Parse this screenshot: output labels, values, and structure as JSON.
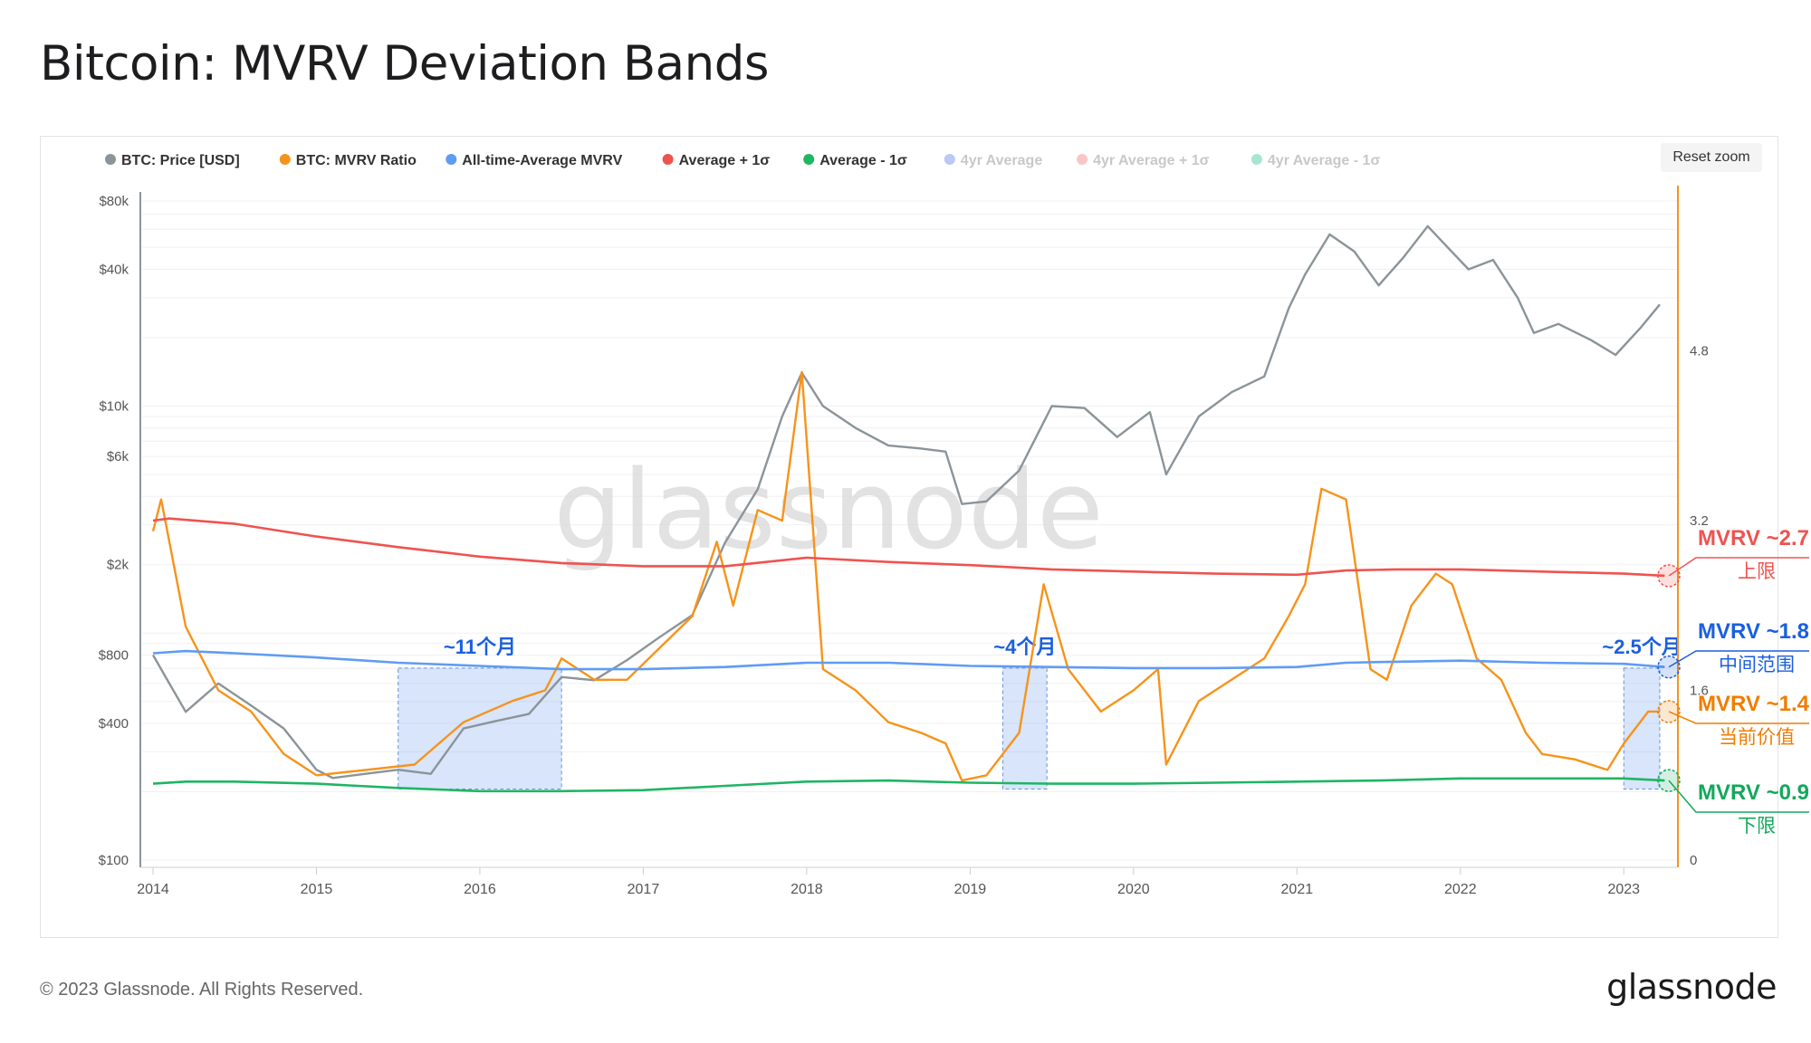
{
  "title": "Bitcoin: MVRV Deviation Bands",
  "reset_zoom": "Reset zoom",
  "footer": "© 2023 Glassnode. All Rights Reserved.",
  "logo": "glassnode",
  "watermark": "glassnode",
  "legend": [
    {
      "label": "BTC: Price [USD]",
      "color": "#8b9499",
      "active": true
    },
    {
      "label": "BTC: MVRV Ratio",
      "color": "#f7931a",
      "active": true
    },
    {
      "label": "All-time-Average MVRV",
      "color": "#5f9cf3",
      "active": true
    },
    {
      "label": "Average + 1σ",
      "color": "#ef5350",
      "active": true
    },
    {
      "label": "Average - 1σ",
      "color": "#1fb564",
      "active": true
    },
    {
      "label": "4yr Average",
      "color": "#bcc8f5",
      "active": false
    },
    {
      "label": "4yr Average + 1σ",
      "color": "#f8c6c6",
      "active": false
    },
    {
      "label": "4yr Average - 1σ",
      "color": "#a6e6cf",
      "active": false
    }
  ],
  "chart_data": {
    "type": "line",
    "x_ticks": [
      "2014",
      "2015",
      "2016",
      "2017",
      "2018",
      "2019",
      "2020",
      "2021",
      "2022",
      "2023"
    ],
    "y_left_ticks": [
      "$80k",
      "$40k",
      "$10k",
      "$6k",
      "$2k",
      "$800",
      "$400",
      "$100"
    ],
    "y_right_ticks": [
      "4.8",
      "3.2",
      "1.6",
      "0"
    ],
    "y_left_scale": "log",
    "series": [
      {
        "name": "BTC: Price [USD]",
        "color": "#8b9499",
        "x": [
          2014.0,
          2014.1,
          2014.2,
          2014.4,
          2014.6,
          2014.8,
          2015.0,
          2015.1,
          2015.3,
          2015.5,
          2015.7,
          2015.9,
          2016.1,
          2016.3,
          2016.5,
          2016.7,
          2016.9,
          2017.1,
          2017.3,
          2017.5,
          2017.7,
          2017.85,
          2017.97,
          2018.1,
          2018.3,
          2018.5,
          2018.7,
          2018.85,
          2018.95,
          2019.1,
          2019.3,
          2019.5,
          2019.7,
          2019.9,
          2020.1,
          2020.2,
          2020.4,
          2020.6,
          2020.8,
          2020.95,
          2021.05,
          2021.2,
          2021.35,
          2021.5,
          2021.65,
          2021.8,
          2021.9,
          2022.05,
          2022.2,
          2022.35,
          2022.45,
          2022.6,
          2022.8,
          2022.95,
          2023.1,
          2023.22
        ],
        "y": [
          800,
          600,
          450,
          600,
          480,
          380,
          250,
          230,
          240,
          250,
          240,
          380,
          410,
          440,
          640,
          620,
          760,
          960,
          1200,
          2500,
          4300,
          9000,
          14000,
          10000,
          8000,
          6700,
          6500,
          6300,
          3700,
          3800,
          5200,
          10000,
          9800,
          7300,
          9400,
          5000,
          9000,
          11500,
          13500,
          27000,
          38000,
          57000,
          48000,
          34000,
          45000,
          62000,
          52000,
          40000,
          44000,
          30000,
          21000,
          23000,
          19500,
          16800,
          22000,
          28000
        ]
      },
      {
        "name": "BTC: MVRV Ratio",
        "color": "#f7931a",
        "x": [
          2014.0,
          2014.05,
          2014.2,
          2014.4,
          2014.6,
          2014.8,
          2015.0,
          2015.3,
          2015.6,
          2015.9,
          2016.2,
          2016.4,
          2016.5,
          2016.7,
          2016.9,
          2017.1,
          2017.3,
          2017.45,
          2017.55,
          2017.7,
          2017.85,
          2017.97,
          2018.1,
          2018.3,
          2018.5,
          2018.7,
          2018.85,
          2018.95,
          2019.1,
          2019.3,
          2019.45,
          2019.6,
          2019.8,
          2020.0,
          2020.15,
          2020.2,
          2020.4,
          2020.6,
          2020.8,
          2020.95,
          2021.05,
          2021.15,
          2021.3,
          2021.45,
          2021.55,
          2021.7,
          2021.85,
          2021.95,
          2022.1,
          2022.25,
          2022.4,
          2022.5,
          2022.7,
          2022.9,
          2023.0,
          2023.15,
          2023.22
        ],
        "y": [
          3.1,
          3.4,
          2.2,
          1.6,
          1.4,
          1.0,
          0.8,
          0.85,
          0.9,
          1.3,
          1.5,
          1.6,
          1.9,
          1.7,
          1.7,
          2.0,
          2.3,
          3.0,
          2.4,
          3.3,
          3.2,
          4.6,
          1.8,
          1.6,
          1.3,
          1.2,
          1.1,
          0.75,
          0.8,
          1.2,
          2.6,
          1.8,
          1.4,
          1.6,
          1.8,
          0.9,
          1.5,
          1.7,
          1.9,
          2.3,
          2.6,
          3.5,
          3.4,
          1.8,
          1.7,
          2.4,
          2.7,
          2.6,
          1.9,
          1.7,
          1.2,
          1.0,
          0.95,
          0.85,
          1.1,
          1.4,
          1.4
        ]
      },
      {
        "name": "All-time-Average MVRV",
        "color": "#5f9cf3",
        "x": [
          2014.0,
          2014.2,
          2014.5,
          2015.0,
          2015.5,
          2016.0,
          2016.5,
          2017.0,
          2017.5,
          2018.0,
          2018.5,
          2019.0,
          2019.5,
          2020.0,
          2020.5,
          2021.0,
          2021.3,
          2021.6,
          2022.0,
          2022.5,
          2023.0,
          2023.25
        ],
        "y": [
          1.95,
          1.97,
          1.95,
          1.91,
          1.86,
          1.83,
          1.8,
          1.8,
          1.82,
          1.86,
          1.86,
          1.83,
          1.82,
          1.81,
          1.81,
          1.82,
          1.86,
          1.87,
          1.88,
          1.86,
          1.85,
          1.82
        ]
      },
      {
        "name": "Average + 1σ",
        "color": "#ef5350",
        "x": [
          2014.0,
          2014.1,
          2014.5,
          2015.0,
          2015.5,
          2016.0,
          2016.5,
          2017.0,
          2017.5,
          2018.0,
          2018.5,
          2019.0,
          2019.5,
          2020.0,
          2020.5,
          2021.0,
          2021.3,
          2021.6,
          2022.0,
          2022.5,
          2023.0,
          2023.25
        ],
        "y": [
          3.2,
          3.22,
          3.17,
          3.05,
          2.95,
          2.86,
          2.8,
          2.77,
          2.77,
          2.85,
          2.81,
          2.78,
          2.74,
          2.72,
          2.7,
          2.69,
          2.73,
          2.74,
          2.74,
          2.72,
          2.7,
          2.68
        ]
      },
      {
        "name": "Average - 1σ",
        "color": "#1fb564",
        "x": [
          2014.0,
          2014.2,
          2014.5,
          2015.0,
          2015.5,
          2016.0,
          2016.5,
          2017.0,
          2017.5,
          2018.0,
          2018.5,
          2019.0,
          2019.5,
          2020.0,
          2020.5,
          2021.0,
          2021.5,
          2022.0,
          2022.5,
          2023.0,
          2023.25
        ],
        "y": [
          0.72,
          0.74,
          0.74,
          0.72,
          0.68,
          0.65,
          0.65,
          0.66,
          0.7,
          0.74,
          0.75,
          0.73,
          0.72,
          0.72,
          0.73,
          0.74,
          0.75,
          0.77,
          0.77,
          0.77,
          0.75
        ]
      }
    ],
    "highlight_periods": [
      {
        "start": 2015.5,
        "end": 2016.5,
        "label": "~11个月"
      },
      {
        "start": 2019.2,
        "end": 2019.47,
        "label": "~4个月"
      },
      {
        "start": 2023.0,
        "end": 2023.22,
        "label": "~2.5个月"
      }
    ],
    "annotations": [
      {
        "value_label": "MVRV ~2.7",
        "sub": "上限",
        "color": "#ef5350"
      },
      {
        "value_label": "MVRV ~1.8",
        "sub": "中间范围",
        "color": "#1a5fe0"
      },
      {
        "value_label": "MVRV ~1.4",
        "sub": "当前价值",
        "color": "#f07d00"
      },
      {
        "value_label": "MVRV ~0.9",
        "sub": "下限",
        "color": "#13a85b"
      }
    ],
    "grid": true,
    "legend_position": "top-left"
  }
}
